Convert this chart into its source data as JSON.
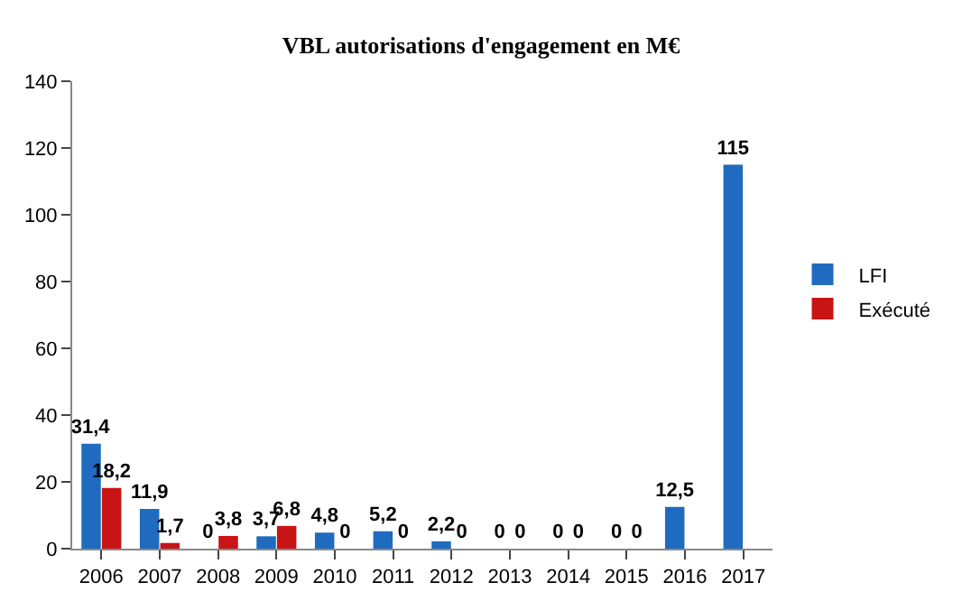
{
  "chart_data": {
    "type": "bar",
    "title": "VBL autorisations d'engagement en M€",
    "categories": [
      "2006",
      "2007",
      "2008",
      "2009",
      "2010",
      "2011",
      "2012",
      "2013",
      "2014",
      "2015",
      "2016",
      "2017"
    ],
    "series": [
      {
        "name": "LFI",
        "color": "#1f6bbf",
        "values": [
          31.4,
          11.9,
          0,
          3.7,
          4.8,
          5.2,
          2.2,
          0,
          0,
          0,
          12.5,
          115
        ],
        "value_labels": [
          "31,4",
          "11,9",
          "0",
          "3,7",
          "4,8",
          "5,2",
          "2,2",
          "0",
          "0",
          "0",
          "12,5",
          "115"
        ]
      },
      {
        "name": "Exécuté",
        "color": "#c81414",
        "values": [
          18.2,
          1.7,
          3.8,
          6.8,
          0,
          0,
          0,
          0,
          0,
          0,
          null,
          null
        ],
        "value_labels": [
          "18,2",
          "1,7",
          "3,8",
          "6,8",
          "0",
          "0",
          "0",
          "0",
          "0",
          "0",
          null,
          null
        ]
      }
    ],
    "ylim": [
      0,
      140
    ],
    "yticks": [
      0,
      20,
      40,
      60,
      80,
      100,
      120,
      140
    ],
    "legend": "right"
  }
}
